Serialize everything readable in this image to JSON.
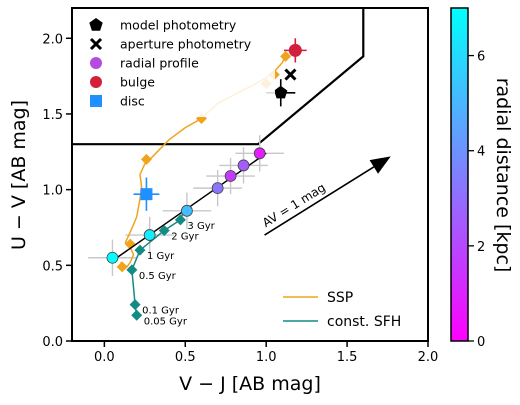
{
  "chart_data": {
    "type": "scatter",
    "xlabel": "V − J [AB mag]",
    "ylabel": "U − V [AB mag]",
    "xlim": [
      -0.2,
      2.0
    ],
    "ylim": [
      0.0,
      2.2
    ],
    "xticks": [
      0.0,
      0.5,
      1.0,
      1.5,
      2.0
    ],
    "yticks": [
      0.0,
      0.5,
      1.0,
      1.5,
      2.0
    ],
    "xticklabels": [
      "0.0",
      "0.5",
      "1.0",
      "1.5",
      "2.0"
    ],
    "yticklabels": [
      "0.0",
      "0.5",
      "1.0",
      "1.5",
      "2.0"
    ],
    "grid": false,
    "legend_position": "top-left",
    "legend": [
      {
        "label": "model photometry",
        "marker": "pentagon",
        "color": "#000000"
      },
      {
        "label": "aperture photometry",
        "marker": "x",
        "color": "#000000"
      },
      {
        "label": "radial profile",
        "marker": "circle",
        "color": "#b44be0"
      },
      {
        "label": "bulge",
        "marker": "circle",
        "color": "#d21f3c"
      },
      {
        "label": "disc",
        "marker": "square",
        "color": "#1e90ff"
      }
    ],
    "line_legend": [
      {
        "label": "SSP",
        "color": "#f0a41c"
      },
      {
        "label": "const. SFH",
        "color": "#138a84"
      }
    ],
    "colorbar": {
      "label": "radial distance [kpc]",
      "range": [
        0,
        7
      ],
      "ticks": [
        0,
        2,
        4,
        6
      ],
      "ticklabels": [
        "0",
        "2",
        "4",
        "6"
      ],
      "colors": [
        "#ff00ff",
        "#00ffff"
      ]
    },
    "quiescent_box": [
      [
        -0.2,
        1.3
      ],
      [
        0.95,
        1.3
      ],
      [
        1.6,
        1.88
      ],
      [
        1.6,
        2.2
      ]
    ],
    "reddening_vector": {
      "label": "AV = 1 mag",
      "from": [
        0.99,
        0.7
      ],
      "to": [
        1.77,
        1.22
      ]
    },
    "ssp_track": [
      [
        0.1,
        0.52
      ],
      [
        0.14,
        0.49
      ],
      [
        0.16,
        0.52
      ],
      [
        0.18,
        0.57
      ],
      [
        0.16,
        0.62
      ],
      [
        0.13,
        0.65
      ],
      [
        0.16,
        0.72
      ],
      [
        0.2,
        0.82
      ],
      [
        0.22,
        0.94
      ],
      [
        0.23,
        1.02
      ],
      [
        0.22,
        1.1
      ],
      [
        0.25,
        1.17
      ],
      [
        0.3,
        1.22
      ],
      [
        0.4,
        1.33
      ],
      [
        0.5,
        1.41
      ],
      [
        0.6,
        1.47
      ],
      [
        0.7,
        1.57
      ],
      [
        0.79,
        1.62
      ],
      [
        0.9,
        1.68
      ],
      [
        1.0,
        1.74
      ],
      [
        1.05,
        1.78
      ],
      [
        1.1,
        1.84
      ],
      [
        1.12,
        1.89
      ]
    ],
    "ssp_markers": [
      [
        0.11,
        0.49
      ],
      [
        0.16,
        0.64
      ],
      [
        0.26,
        1.2
      ],
      [
        0.6,
        1.47
      ],
      [
        1.0,
        1.7
      ],
      [
        1.05,
        1.76
      ],
      [
        1.12,
        1.88
      ]
    ],
    "sfh_track": [
      [
        0.2,
        0.17
      ],
      [
        0.19,
        0.24
      ],
      [
        0.17,
        0.47
      ],
      [
        0.22,
        0.6
      ],
      [
        0.37,
        0.73
      ],
      [
        0.47,
        0.8
      ],
      [
        0.49,
        0.86
      ]
    ],
    "sfh_markers": [
      {
        "x": 0.2,
        "y": 0.17,
        "label": "0.05 Gyr"
      },
      {
        "x": 0.19,
        "y": 0.24,
        "label": "0.1 Gyr"
      },
      {
        "x": 0.17,
        "y": 0.47,
        "label": "0.5 Gyr"
      },
      {
        "x": 0.22,
        "y": 0.6,
        "label": "1 Gyr"
      },
      {
        "x": 0.37,
        "y": 0.73,
        "label": "2 Gyr"
      },
      {
        "x": 0.47,
        "y": 0.8,
        "label": "3 Gyr"
      }
    ],
    "radial_profile": [
      {
        "x": 0.05,
        "y": 0.55,
        "r": 7.0
      },
      {
        "x": 0.28,
        "y": 0.7,
        "r": 6.5
      },
      {
        "x": 0.51,
        "y": 0.86,
        "r": 5.2
      },
      {
        "x": 0.7,
        "y": 1.01,
        "r": 3.2
      },
      {
        "x": 0.78,
        "y": 1.09,
        "r": 1.6
      },
      {
        "x": 0.86,
        "y": 1.16,
        "r": 2.5
      },
      {
        "x": 0.96,
        "y": 1.24,
        "r": 0.8
      }
    ],
    "radial_fit_line": [
      [
        0.05,
        0.53
      ],
      [
        1.0,
        1.24
      ]
    ],
    "bulge": {
      "x": 1.18,
      "y": 1.92,
      "xerr": 0.07,
      "yerr": 0.08
    },
    "bulge_aperture": {
      "x": 1.15,
      "y": 1.76
    },
    "bulge_model": {
      "x": 1.09,
      "y": 1.64,
      "xerr": 0.09,
      "yerr": 0.09
    },
    "disc": {
      "x": 0.26,
      "y": 0.97,
      "xerr": 0.08,
      "yerr": 0.11
    }
  }
}
